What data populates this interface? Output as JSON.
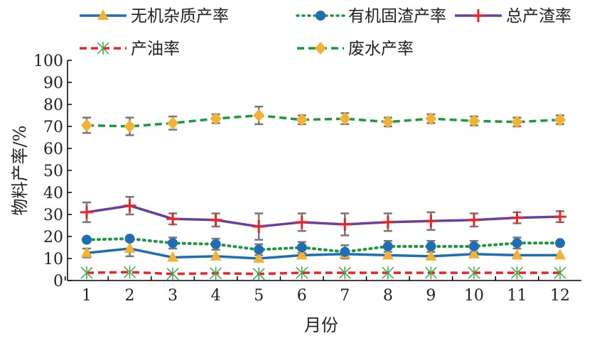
{
  "chart_data": {
    "type": "line",
    "xlabel": "月份",
    "ylabel": "物料产率/%",
    "x": [
      1,
      2,
      3,
      4,
      5,
      6,
      7,
      8,
      9,
      10,
      11,
      12
    ],
    "x_ticks": [
      "1",
      "2",
      "3",
      "4",
      "5",
      "6",
      "7",
      "8",
      "9",
      "10",
      "11",
      "12"
    ],
    "ylim": [
      0,
      100
    ],
    "y_ticks": [
      "0",
      "10",
      "20",
      "30",
      "40",
      "50",
      "60",
      "70",
      "80",
      "90",
      "100"
    ],
    "grid": false,
    "legend_position": "top",
    "series": [
      {
        "name": "无机杂质产率",
        "color": "#1f6db5",
        "marker_color": "#f2b233",
        "marker": "triangle",
        "line": "solid",
        "values": [
          12.5,
          14.5,
          10.5,
          11,
          10,
          11.5,
          12,
          11.5,
          11,
          12,
          11.5,
          11.5
        ],
        "error": [
          2,
          3.5,
          0,
          0,
          0,
          0,
          0,
          0,
          0,
          0,
          0,
          0
        ]
      },
      {
        "name": "有机固渣产率",
        "color": "#1a9a3c",
        "marker_color": "#1f6db5",
        "marker": "circle",
        "line": "dotted",
        "values": [
          18.5,
          19,
          17,
          16.5,
          14,
          15,
          13,
          15.5,
          15.5,
          15.5,
          17,
          17
        ],
        "error": [
          0,
          0,
          2.5,
          2.5,
          2.5,
          2.5,
          3,
          2.5,
          2.5,
          2.5,
          2.5,
          0
        ]
      },
      {
        "name": "总产渣率",
        "color": "#6b3fa0",
        "marker_color": "#e8262a",
        "marker": "plus",
        "line": "solid",
        "values": [
          31,
          34,
          28,
          27.5,
          24.5,
          26.5,
          25.5,
          26.5,
          27,
          27.5,
          28.5,
          29
        ],
        "error": [
          4.5,
          4,
          2.5,
          3,
          6,
          4,
          5,
          4,
          4,
          3,
          2.5,
          2.5
        ]
      },
      {
        "name": "产油率",
        "color": "#e8262a",
        "marker_color": "#3aa84a",
        "marker": "asterisk",
        "line": "dashed",
        "values": [
          3.5,
          3.8,
          3,
          3.3,
          3,
          3.5,
          3.5,
          3.5,
          3.5,
          3.5,
          3.5,
          3.5
        ],
        "error": [
          0,
          0,
          0,
          0,
          0,
          0,
          0,
          0,
          0,
          0,
          0,
          0
        ]
      },
      {
        "name": "废水产率",
        "color": "#1a9a3c",
        "marker_color": "#f2b233",
        "marker": "diamond",
        "line": "dashed",
        "values": [
          70.5,
          70,
          71.5,
          73.5,
          75,
          73,
          73.5,
          72,
          73.5,
          72.5,
          72,
          73
        ],
        "error": [
          3.5,
          4,
          3,
          2,
          4,
          2,
          2.5,
          2,
          2,
          2,
          2,
          2
        ]
      }
    ]
  }
}
